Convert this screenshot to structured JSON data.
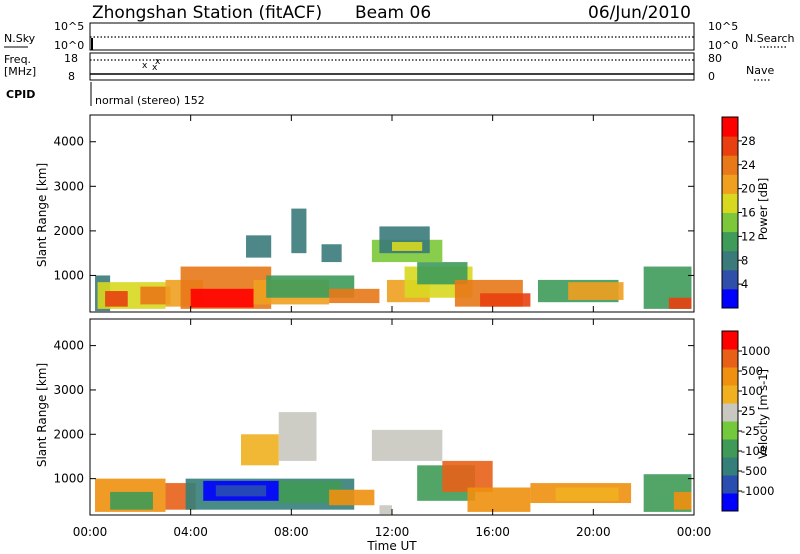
{
  "header": {
    "station": "Zhongshan Station (fitACF)",
    "beam": "Beam 06",
    "date": "06/Jun/2010",
    "nsky_label": "N.Sky",
    "nsky_ticks": [
      "10^5",
      "10^0"
    ],
    "nsearch_ticks": [
      "10^5",
      "10^0"
    ],
    "nsearch_label": "N.Search",
    "freq_label": "Freq.",
    "freq_unit": "[MHz]",
    "freq_ticks": [
      "18",
      "8"
    ],
    "nave_ticks": [
      "80",
      "0"
    ],
    "nave_label": "Nave",
    "cpid_label": "CPID",
    "mode_text": "normal (stereo) 152"
  },
  "chart_data": [
    {
      "type": "heatmap",
      "name": "power",
      "ylabel": "Slant Range [km]",
      "xlabel": "Time UT",
      "x_ticks": [
        "00:00",
        "04:00",
        "08:00",
        "12:00",
        "16:00",
        "20:00",
        "00:00"
      ],
      "xlim_hours": [
        0,
        24
      ],
      "y_ticks": [
        1000,
        2000,
        3000,
        4000
      ],
      "ylim": [
        180,
        4600
      ],
      "colorbar": {
        "label": "Power [dB]",
        "ticks": [
          "4",
          "8",
          "12",
          "16",
          "20",
          "24",
          "28"
        ],
        "colors": [
          "#0000ff",
          "#2f4fa8",
          "#3a7a7a",
          "#3e9b5a",
          "#7cc83a",
          "#d8d820",
          "#f0a020",
          "#e87818",
          "#e84010",
          "#ff0000"
        ]
      },
      "patches": [
        {
          "t0": 0.2,
          "t1": 0.8,
          "r0": 200,
          "r1": 1000,
          "c": 2
        },
        {
          "t0": 0.3,
          "t1": 3.0,
          "r0": 250,
          "r1": 850,
          "c": 5
        },
        {
          "t0": 0.6,
          "t1": 1.5,
          "r0": 300,
          "r1": 650,
          "c": 8
        },
        {
          "t0": 2.0,
          "t1": 3.2,
          "r0": 350,
          "r1": 750,
          "c": 7
        },
        {
          "t0": 3.0,
          "t1": 4.5,
          "r0": 300,
          "r1": 900,
          "c": 6
        },
        {
          "t0": 3.6,
          "t1": 7.2,
          "r0": 250,
          "r1": 1200,
          "c": 7
        },
        {
          "t0": 4.0,
          "t1": 6.5,
          "r0": 280,
          "r1": 700,
          "c": 9
        },
        {
          "t0": 6.5,
          "t1": 9.5,
          "r0": 350,
          "r1": 900,
          "c": 6
        },
        {
          "t0": 7.0,
          "t1": 10.5,
          "r0": 500,
          "r1": 1000,
          "c": 3
        },
        {
          "t0": 9.5,
          "t1": 11.5,
          "r0": 380,
          "r1": 700,
          "c": 7
        },
        {
          "t0": 11.8,
          "t1": 13.5,
          "r0": 400,
          "r1": 900,
          "c": 6
        },
        {
          "t0": 12.5,
          "t1": 15.2,
          "r0": 500,
          "r1": 1200,
          "c": 5
        },
        {
          "t0": 13.0,
          "t1": 15.0,
          "r0": 800,
          "r1": 1300,
          "c": 3
        },
        {
          "t0": 11.2,
          "t1": 14.0,
          "r0": 1300,
          "r1": 1800,
          "c": 4
        },
        {
          "t0": 11.5,
          "t1": 13.5,
          "r0": 1500,
          "r1": 2100,
          "c": 2
        },
        {
          "t0": 12.0,
          "t1": 13.2,
          "r0": 1550,
          "r1": 1750,
          "c": 5
        },
        {
          "t0": 14.5,
          "t1": 17.2,
          "r0": 300,
          "r1": 900,
          "c": 7
        },
        {
          "t0": 15.5,
          "t1": 17.5,
          "r0": 300,
          "r1": 600,
          "c": 8
        },
        {
          "t0": 17.8,
          "t1": 21.0,
          "r0": 400,
          "r1": 900,
          "c": 3
        },
        {
          "t0": 19.0,
          "t1": 21.2,
          "r0": 450,
          "r1": 850,
          "c": 6
        },
        {
          "t0": 22.0,
          "t1": 23.9,
          "r0": 250,
          "r1": 1200,
          "c": 3
        },
        {
          "t0": 23.0,
          "t1": 23.9,
          "r0": 250,
          "r1": 500,
          "c": 8
        },
        {
          "t0": 8.0,
          "t1": 8.6,
          "r0": 1500,
          "r1": 2500,
          "c": 2
        },
        {
          "t0": 6.2,
          "t1": 7.2,
          "r0": 1400,
          "r1": 1900,
          "c": 2
        },
        {
          "t0": 9.2,
          "t1": 10.0,
          "r0": 1300,
          "r1": 1700,
          "c": 2
        }
      ]
    },
    {
      "type": "heatmap",
      "name": "velocity",
      "ylabel": "Slant Range [km]",
      "xlabel": "Time UT",
      "x_ticks": [
        "00:00",
        "04:00",
        "08:00",
        "12:00",
        "16:00",
        "20:00",
        "00:00"
      ],
      "xlim_hours": [
        0,
        24
      ],
      "y_ticks": [
        1000,
        2000,
        3000,
        4000
      ],
      "ylim": [
        180,
        4600
      ],
      "colorbar": {
        "label": "Velocity [m s-1]",
        "ticks": [
          "1000",
          "500",
          "100",
          "25",
          "-25",
          "-100",
          "-500",
          "-1000"
        ],
        "colors": [
          "#0000ff",
          "#2a4eb0",
          "#357f7a",
          "#3f9a57",
          "#74c83c",
          "#c8c8c0",
          "#f0b020",
          "#f09010",
          "#e86018",
          "#ff0000"
        ]
      },
      "patches": [
        {
          "t0": 0.2,
          "t1": 3.0,
          "r0": 250,
          "r1": 1000,
          "c": 7
        },
        {
          "t0": 0.8,
          "t1": 2.5,
          "r0": 300,
          "r1": 700,
          "c": 3
        },
        {
          "t0": 3.0,
          "t1": 4.2,
          "r0": 300,
          "r1": 900,
          "c": 8
        },
        {
          "t0": 3.8,
          "t1": 10.5,
          "r0": 300,
          "r1": 1000,
          "c": 2
        },
        {
          "t0": 4.5,
          "t1": 7.5,
          "r0": 500,
          "r1": 950,
          "c": 0
        },
        {
          "t0": 5.0,
          "t1": 7.0,
          "r0": 600,
          "r1": 850,
          "c": 1
        },
        {
          "t0": 7.5,
          "t1": 10.0,
          "r0": 450,
          "r1": 950,
          "c": 3
        },
        {
          "t0": 9.5,
          "t1": 11.3,
          "r0": 400,
          "r1": 750,
          "c": 7
        },
        {
          "t0": 7.5,
          "t1": 9.0,
          "r0": 1400,
          "r1": 2500,
          "c": 5
        },
        {
          "t0": 6.0,
          "t1": 7.5,
          "r0": 1300,
          "r1": 2000,
          "c": 6
        },
        {
          "t0": 11.2,
          "t1": 14.0,
          "r0": 1400,
          "r1": 2100,
          "c": 5
        },
        {
          "t0": 11.5,
          "t1": 12.0,
          "r0": 200,
          "r1": 400,
          "c": 5
        },
        {
          "t0": 13.0,
          "t1": 15.3,
          "r0": 500,
          "r1": 1300,
          "c": 3
        },
        {
          "t0": 14.0,
          "t1": 16.0,
          "r0": 700,
          "r1": 1400,
          "c": 8
        },
        {
          "t0": 15.0,
          "t1": 17.5,
          "r0": 250,
          "r1": 800,
          "c": 7
        },
        {
          "t0": 17.5,
          "t1": 21.5,
          "r0": 450,
          "r1": 900,
          "c": 7
        },
        {
          "t0": 18.5,
          "t1": 21.0,
          "r0": 500,
          "r1": 800,
          "c": 6
        },
        {
          "t0": 22.0,
          "t1": 23.9,
          "r0": 250,
          "r1": 1100,
          "c": 3
        },
        {
          "t0": 23.2,
          "t1": 23.9,
          "r0": 300,
          "r1": 700,
          "c": 7
        }
      ]
    }
  ]
}
